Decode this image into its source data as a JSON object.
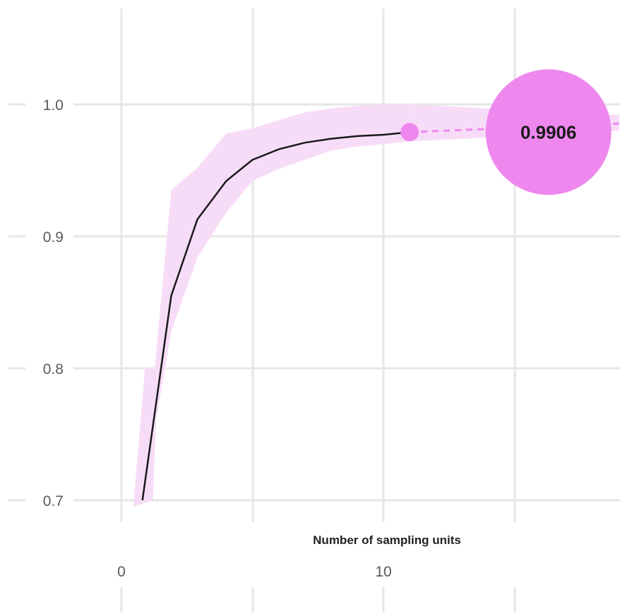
{
  "chart_data": {
    "type": "line",
    "xlabel": "Number of sampling units",
    "ylabel": "",
    "xlim": [
      -0.2,
      19
    ],
    "ylim": [
      0.7,
      1.02
    ],
    "x_ticks": [
      0,
      10
    ],
    "y_ticks": [
      0.7,
      0.8,
      0.9,
      1.0
    ],
    "x_tick_labels": [
      "0",
      "10"
    ],
    "y_tick_labels": [
      "0.7",
      "0.8",
      "0.9",
      "1.0"
    ],
    "grid": true,
    "colors": {
      "line": "#1a1a1a",
      "band": "#f7dcf7",
      "marker": "#ee88ee",
      "callout": "#ee88ee"
    },
    "series": [
      {
        "x": [
          0.8,
          1.9,
          2.9,
          4.0,
          5.0,
          6.0,
          7.0,
          8.0,
          9.0,
          10.0,
          11.0
        ],
        "y": [
          0.7,
          0.855,
          0.913,
          0.942,
          0.958,
          0.966,
          0.971,
          0.974,
          0.976,
          0.977,
          0.979
        ],
        "lower": [
          0.7,
          0.828,
          0.884,
          0.918,
          0.942,
          0.951,
          0.958,
          0.965,
          0.968,
          0.97,
          0.972
        ],
        "upper": [
          0.7,
          0.935,
          0.952,
          0.978,
          0.982,
          0.988,
          0.994,
          0.997,
          0.999,
          1.0,
          1.0
        ]
      }
    ],
    "extrapolation": {
      "x": [
        11.0,
        19.0
      ],
      "y": [
        0.979,
        0.9855
      ],
      "band_lower": [
        0.972,
        0.98
      ],
      "band_upper": [
        1.0,
        0.992
      ]
    },
    "marker": {
      "x": 11.0,
      "y": 0.979
    },
    "callout": {
      "label": "0.9906",
      "x": 16.3,
      "y": 0.979
    }
  }
}
